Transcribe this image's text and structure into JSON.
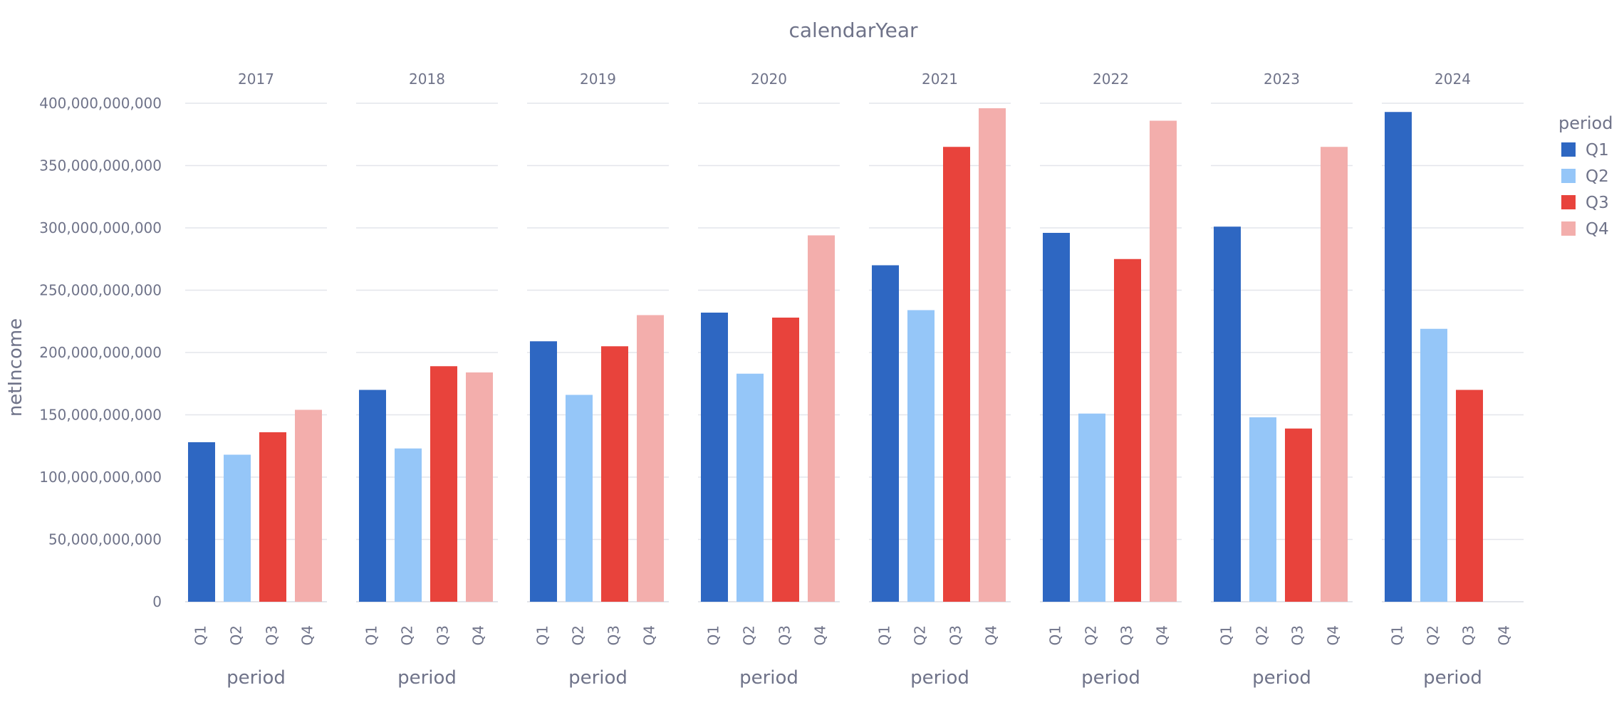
{
  "chart_data": {
    "type": "bar",
    "title": "calendarYear",
    "xlabel": "period",
    "ylabel": "netIncome",
    "facet_by": "calendarYear",
    "facets": [
      "2017",
      "2018",
      "2019",
      "2020",
      "2021",
      "2022",
      "2023",
      "2024"
    ],
    "categories": [
      "Q1",
      "Q2",
      "Q3",
      "Q4"
    ],
    "ylim": [
      0,
      400000000000
    ],
    "yticks": [
      0,
      50000000000,
      100000000000,
      150000000000,
      200000000000,
      250000000000,
      300000000000,
      350000000000,
      400000000000
    ],
    "ytick_labels": [
      "0",
      "50,000,000,000",
      "100,000,000,000",
      "150,000,000,000",
      "200,000,000,000",
      "250,000,000,000",
      "300,000,000,000",
      "350,000,000,000",
      "400,000,000,000"
    ],
    "values": {
      "2017": [
        128000000000,
        118000000000,
        136000000000,
        154000000000
      ],
      "2018": [
        170000000000,
        123000000000,
        189000000000,
        184000000000
      ],
      "2019": [
        209000000000,
        166000000000,
        205000000000,
        230000000000
      ],
      "2020": [
        232000000000,
        183000000000,
        228000000000,
        294000000000
      ],
      "2021": [
        270000000000,
        234000000000,
        365000000000,
        396000000000
      ],
      "2022": [
        296000000000,
        151000000000,
        275000000000,
        386000000000
      ],
      "2023": [
        301000000000,
        148000000000,
        139000000000,
        365000000000
      ],
      "2024": [
        393000000000,
        219000000000,
        170000000000,
        null
      ]
    },
    "grid": true,
    "legend": {
      "title": "period",
      "placement": "right",
      "items": [
        "Q1",
        "Q2",
        "Q3",
        "Q4"
      ]
    },
    "colors": {
      "Q1": "#2e67c2",
      "Q2": "#95c6f8",
      "Q3": "#e8433c",
      "Q4": "#f3aeac"
    }
  }
}
